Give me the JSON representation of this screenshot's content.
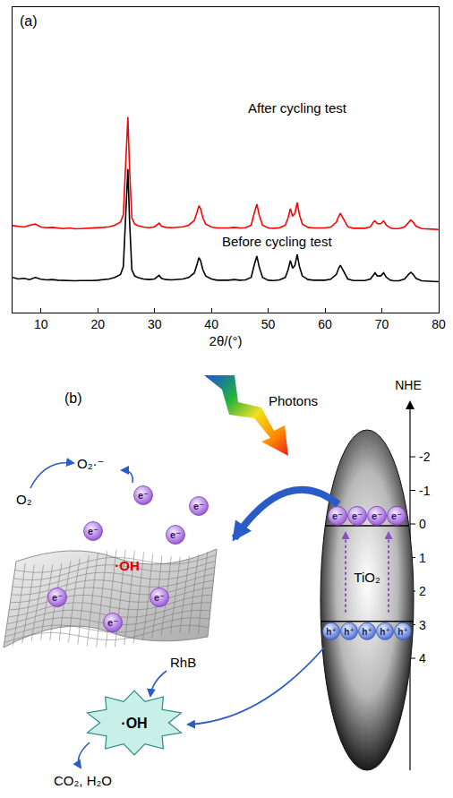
{
  "chart_data": {
    "type": "line",
    "panel_label": "(a)",
    "x_label": "2θ/(°)",
    "x": [
      5,
      6,
      7,
      8,
      9,
      10,
      11,
      12,
      13,
      14,
      15,
      16,
      17,
      18,
      19,
      20,
      21,
      22,
      23,
      24,
      24.5,
      25,
      25.3,
      25.6,
      26,
      26.5,
      27,
      28,
      29,
      30,
      30.5,
      30.8,
      31.2,
      32,
      33,
      34,
      35,
      36,
      37,
      37.5,
      37.8,
      38.1,
      38.5,
      39,
      40,
      41,
      42,
      43,
      44,
      45,
      46,
      47,
      47.6,
      48,
      48.4,
      49,
      50,
      51,
      52,
      53,
      53.5,
      53.9,
      54.3,
      54.7,
      55.1,
      55.5,
      56,
      57,
      58,
      59,
      60,
      61,
      62,
      62.4,
      62.7,
      63,
      63.5,
      64,
      65,
      66,
      67,
      68,
      68.5,
      68.8,
      69.2,
      69.8,
      70.3,
      70.8,
      71.5,
      72,
      73,
      74,
      74.7,
      75.1,
      75.5,
      76,
      77,
      78,
      79,
      80
    ],
    "series": [
      {
        "name": "Before cycling test",
        "color": "#000000",
        "values": [
          11.5,
          11,
          11.2,
          10.8,
          11.5,
          10.9,
          10.7,
          10.8,
          10.6,
          10.5,
          10.6,
          10.4,
          10.5,
          10.4,
          10.5,
          10.6,
          10.8,
          11,
          11.5,
          12.5,
          15,
          35,
          47,
          30,
          14,
          12,
          11.5,
          11,
          10.8,
          11,
          11.8,
          12.2,
          11.2,
          10.8,
          10.7,
          10.8,
          11,
          11.5,
          13,
          16,
          18,
          17,
          14,
          12,
          11,
          10.6,
          10.5,
          10.6,
          10.8,
          10.6,
          10.7,
          11.5,
          16,
          18.5,
          15,
          11.5,
          10.6,
          10.5,
          10.7,
          11.5,
          14,
          17,
          14.5,
          15.5,
          19,
          15,
          12,
          10.8,
          10.6,
          10.5,
          10.6,
          10.9,
          12.5,
          14.5,
          15.5,
          14.5,
          12.5,
          11,
          10.5,
          10.4,
          10.5,
          11,
          12.5,
          13,
          12,
          12,
          13,
          11.5,
          10.6,
          10.4,
          10.4,
          11,
          12.5,
          13.2,
          12.5,
          11.2,
          10.4,
          10.2,
          10.2,
          10.1
        ]
      },
      {
        "name": "After cycling test",
        "color": "#ff0000",
        "values": [
          28.5,
          28.2,
          28,
          28.6,
          29,
          28,
          27.8,
          27.9,
          27.6,
          27.5,
          27.7,
          27.4,
          27.5,
          27.6,
          27.5,
          27.7,
          27.9,
          28.1,
          28.6,
          29.6,
          32,
          52,
          64,
          47,
          31,
          29,
          28.5,
          28,
          27.8,
          28.1,
          29,
          29.3,
          28.3,
          27.9,
          27.8,
          27.9,
          28.1,
          28.6,
          30.2,
          33,
          35,
          34,
          31,
          29,
          28,
          27.7,
          27.6,
          27.7,
          27.9,
          27.7,
          27.8,
          28.6,
          33,
          35.5,
          32,
          28.6,
          27.7,
          27.6,
          27.8,
          28.6,
          31,
          34,
          31.5,
          32.5,
          36,
          32,
          29,
          27.9,
          27.7,
          27.6,
          27.7,
          28,
          29.6,
          31.5,
          32.5,
          31.5,
          29.6,
          28.1,
          27.6,
          27.5,
          27.6,
          28.1,
          29.6,
          30,
          29.1,
          29.1,
          30,
          28.6,
          27.7,
          27.5,
          27.5,
          28.1,
          29.6,
          30.3,
          29.6,
          28.3,
          27.5,
          27.3,
          27.3,
          27.2
        ]
      }
    ],
    "xlim": [
      5,
      80
    ],
    "xticks": [
      10,
      20,
      30,
      40,
      50,
      60,
      70,
      80
    ],
    "ylim": [
      0,
      100
    ],
    "tick_labels": "x",
    "grid": false
  },
  "diagram": {
    "panel_label": "(b)",
    "photons": "Photons",
    "axis": {
      "label": "NHE",
      "ticks": [
        -2,
        -1,
        0,
        1,
        2,
        3,
        4
      ]
    },
    "semiconductor": "TiO₂",
    "electron": "e⁻",
    "hole": "h⁺",
    "cb_electrons": 4,
    "vb_holes": 5,
    "sheet_electrons": 7,
    "oxygen": "O₂",
    "superoxide": "O₂·⁻",
    "sheet_radical": "·OH",
    "dye": "RhB",
    "dye_radical": "·OH",
    "products": "CO₂, H₂O"
  }
}
